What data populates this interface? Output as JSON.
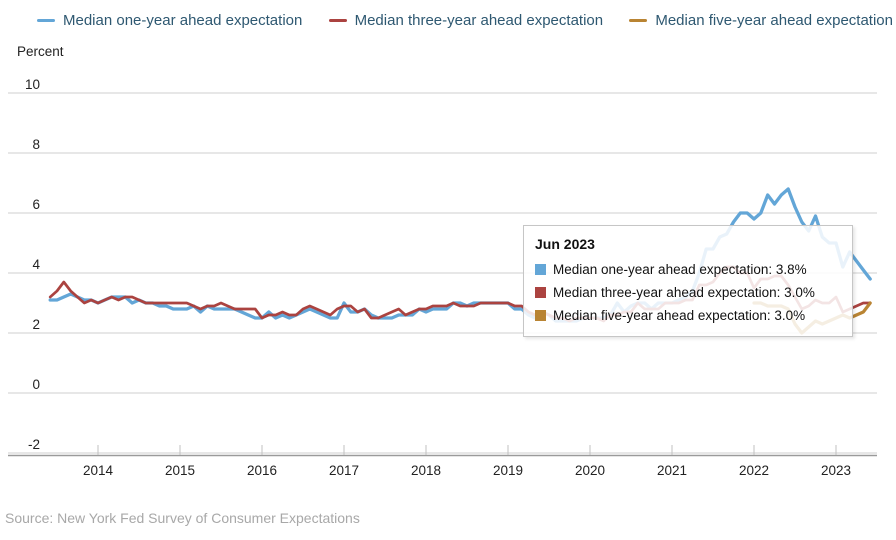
{
  "source": {
    "text": "Source: New York Fed Survey of Consumer Expectations"
  },
  "tooltip": {
    "title": "Jun 2023",
    "rows": [
      {
        "text": "Median one-year ahead expectation: 3.8%"
      },
      {
        "text": "Median three-year ahead expectation: 3.0%"
      },
      {
        "text": "Median five-year ahead expectation: 3.0%"
      }
    ]
  },
  "chart_data": {
    "type": "line",
    "title": "",
    "ylabel": "Percent",
    "ylim": [
      -2,
      10
    ],
    "yticks": [
      10,
      8,
      6,
      4,
      2,
      0,
      -2
    ],
    "xticks": [
      "2014",
      "2015",
      "2016",
      "2017",
      "2018",
      "2019",
      "2020",
      "2021",
      "2022",
      "2023"
    ],
    "x_unit": "month",
    "x_range": [
      "2013-06",
      "2023-06"
    ],
    "grid": "horizontal",
    "legend_position": "top",
    "grid_color": "#cfcfcf",
    "axis_color": "#9a9a9a",
    "tick_label_color": "#222222",
    "series": [
      {
        "name": "Median one-year ahead expectation",
        "color": "#63a6d7",
        "start": "2013-06",
        "values": [
          3.1,
          3.1,
          3.2,
          3.3,
          3.2,
          3.1,
          3.1,
          3.0,
          3.1,
          3.2,
          3.2,
          3.2,
          3.0,
          3.1,
          3.0,
          3.0,
          2.9,
          2.9,
          2.8,
          2.8,
          2.8,
          2.9,
          2.7,
          2.9,
          2.8,
          2.8,
          2.8,
          2.8,
          2.7,
          2.6,
          2.5,
          2.5,
          2.7,
          2.5,
          2.6,
          2.5,
          2.6,
          2.7,
          2.8,
          2.7,
          2.6,
          2.5,
          2.5,
          3.0,
          2.7,
          2.7,
          2.8,
          2.6,
          2.5,
          2.5,
          2.5,
          2.6,
          2.6,
          2.6,
          2.8,
          2.7,
          2.8,
          2.8,
          2.8,
          3.0,
          3.0,
          2.9,
          3.0,
          3.0,
          3.0,
          3.0,
          3.0,
          3.0,
          2.8,
          2.8,
          2.6,
          2.5,
          2.7,
          2.6,
          2.4,
          2.4,
          2.4,
          2.4,
          2.5,
          2.5,
          2.5,
          2.5,
          2.6,
          3.0,
          2.7,
          2.9,
          3.0,
          3.0,
          2.8,
          3.0,
          3.0,
          3.0,
          3.1,
          3.2,
          3.4,
          4.0,
          4.8,
          4.8,
          5.2,
          5.3,
          5.7,
          6.0,
          6.0,
          5.8,
          6.0,
          6.6,
          6.3,
          6.6,
          6.8,
          6.2,
          5.7,
          5.4,
          5.9,
          5.2,
          5.0,
          5.0,
          4.2,
          4.7,
          4.4,
          4.1,
          3.8
        ]
      },
      {
        "name": "Median three-year ahead expectation",
        "color": "#ab4340",
        "start": "2013-06",
        "values": [
          3.2,
          3.4,
          3.7,
          3.4,
          3.2,
          3.0,
          3.1,
          3.0,
          3.1,
          3.2,
          3.1,
          3.2,
          3.2,
          3.1,
          3.0,
          3.0,
          3.0,
          3.0,
          3.0,
          3.0,
          3.0,
          2.9,
          2.8,
          2.9,
          2.9,
          3.0,
          2.9,
          2.8,
          2.8,
          2.8,
          2.8,
          2.5,
          2.6,
          2.6,
          2.7,
          2.6,
          2.6,
          2.8,
          2.9,
          2.8,
          2.7,
          2.6,
          2.8,
          2.9,
          2.9,
          2.7,
          2.8,
          2.5,
          2.5,
          2.6,
          2.7,
          2.8,
          2.6,
          2.7,
          2.8,
          2.8,
          2.9,
          2.9,
          2.9,
          3.0,
          2.9,
          2.9,
          2.9,
          3.0,
          3.0,
          3.0,
          3.0,
          3.0,
          2.9,
          2.9,
          2.7,
          2.6,
          2.7,
          2.6,
          2.5,
          2.5,
          2.4,
          2.5,
          2.5,
          2.5,
          2.5,
          2.4,
          2.6,
          2.6,
          2.7,
          2.7,
          3.0,
          2.8,
          2.8,
          2.8,
          3.0,
          3.0,
          3.0,
          3.1,
          3.1,
          3.6,
          3.6,
          3.7,
          4.0,
          4.2,
          4.2,
          4.0,
          4.0,
          3.5,
          3.8,
          3.8,
          3.9,
          3.9,
          3.6,
          3.2,
          2.8,
          2.9,
          3.1,
          3.0,
          3.0,
          3.2,
          2.7,
          2.8,
          2.9,
          3.0,
          3.0
        ]
      },
      {
        "name": "Median five-year ahead expectation",
        "color": "#b98433",
        "start": "2022-01",
        "values": [
          3.0,
          3.0,
          2.9,
          2.9,
          2.9,
          2.8,
          2.3,
          2.0,
          2.2,
          2.4,
          2.3,
          2.4,
          2.5,
          2.6,
          2.5,
          2.6,
          2.7,
          3.0
        ]
      }
    ]
  }
}
